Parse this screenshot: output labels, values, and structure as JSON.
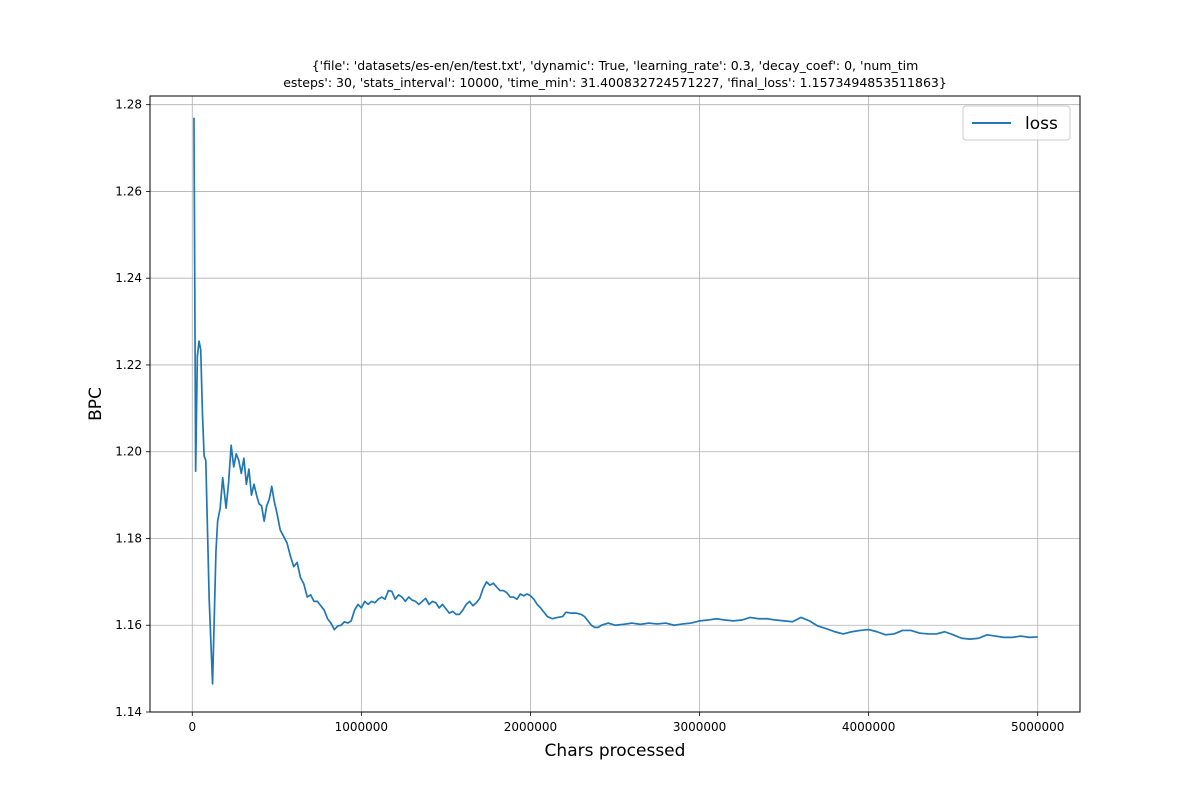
{
  "chart_data": {
    "type": "line",
    "title_lines": [
      "{'file': 'datasets/es-en/en/test.txt', 'dynamic': True, 'learning_rate': 0.3, 'decay_coef': 0, 'num_tim",
      "esteps': 30, 'stats_interval': 10000, 'time_min': 31.400832724571227, 'final_loss': 1.1573494853511863}"
    ],
    "xlabel": "Chars processed",
    "ylabel": "BPC",
    "xlim": [
      -250000,
      5250000
    ],
    "ylim": [
      1.14,
      1.282
    ],
    "xticks": [
      0,
      1000000,
      2000000,
      3000000,
      4000000,
      5000000
    ],
    "xtick_labels": [
      "0",
      "1000000",
      "2000000",
      "3000000",
      "4000000",
      "5000000"
    ],
    "yticks": [
      1.14,
      1.16,
      1.18,
      1.2,
      1.22,
      1.24,
      1.26,
      1.28
    ],
    "ytick_labels": [
      "1.14",
      "1.16",
      "1.18",
      "1.20",
      "1.22",
      "1.24",
      "1.26",
      "1.28"
    ],
    "grid": true,
    "legend_position": "top-right",
    "line_color": "#1f77b4",
    "series": [
      {
        "name": "loss",
        "points": [
          [
            10000,
            1.277
          ],
          [
            20000,
            1.1955
          ],
          [
            30000,
            1.222
          ],
          [
            40000,
            1.2255
          ],
          [
            50000,
            1.2235
          ],
          [
            60000,
            1.209
          ],
          [
            70000,
            1.199
          ],
          [
            80000,
            1.198
          ],
          [
            100000,
            1.166
          ],
          [
            120000,
            1.1465
          ],
          [
            140000,
            1.177
          ],
          [
            150000,
            1.184
          ],
          [
            165000,
            1.187
          ],
          [
            180000,
            1.194
          ],
          [
            200000,
            1.187
          ],
          [
            215000,
            1.193
          ],
          [
            230000,
            1.2015
          ],
          [
            245000,
            1.1965
          ],
          [
            260000,
            1.1995
          ],
          [
            275000,
            1.198
          ],
          [
            290000,
            1.195
          ],
          [
            305000,
            1.1985
          ],
          [
            320000,
            1.1925
          ],
          [
            335000,
            1.196
          ],
          [
            350000,
            1.19
          ],
          [
            365000,
            1.1925
          ],
          [
            380000,
            1.19
          ],
          [
            395000,
            1.188
          ],
          [
            410000,
            1.1875
          ],
          [
            425000,
            1.184
          ],
          [
            440000,
            1.1875
          ],
          [
            455000,
            1.189
          ],
          [
            470000,
            1.192
          ],
          [
            485000,
            1.1885
          ],
          [
            500000,
            1.186
          ],
          [
            520000,
            1.182
          ],
          [
            540000,
            1.1805
          ],
          [
            560000,
            1.179
          ],
          [
            580000,
            1.176
          ],
          [
            600000,
            1.1735
          ],
          [
            620000,
            1.1745
          ],
          [
            640000,
            1.171
          ],
          [
            660000,
            1.1695
          ],
          [
            680000,
            1.1665
          ],
          [
            700000,
            1.167
          ],
          [
            720000,
            1.1655
          ],
          [
            740000,
            1.1655
          ],
          [
            760000,
            1.1645
          ],
          [
            780000,
            1.1635
          ],
          [
            800000,
            1.1615
          ],
          [
            820000,
            1.1605
          ],
          [
            840000,
            1.159
          ],
          [
            860000,
            1.1598
          ],
          [
            880000,
            1.16
          ],
          [
            900000,
            1.1608
          ],
          [
            920000,
            1.1605
          ],
          [
            940000,
            1.161
          ],
          [
            960000,
            1.1635
          ],
          [
            980000,
            1.1648
          ],
          [
            1000000,
            1.164
          ],
          [
            1020000,
            1.1655
          ],
          [
            1040000,
            1.1648
          ],
          [
            1060000,
            1.1655
          ],
          [
            1080000,
            1.1652
          ],
          [
            1100000,
            1.166
          ],
          [
            1120000,
            1.1665
          ],
          [
            1140000,
            1.166
          ],
          [
            1160000,
            1.168
          ],
          [
            1180000,
            1.1678
          ],
          [
            1200000,
            1.166
          ],
          [
            1220000,
            1.167
          ],
          [
            1240000,
            1.1665
          ],
          [
            1260000,
            1.1655
          ],
          [
            1280000,
            1.1665
          ],
          [
            1300000,
            1.1658
          ],
          [
            1320000,
            1.1655
          ],
          [
            1340000,
            1.1648
          ],
          [
            1360000,
            1.1655
          ],
          [
            1380000,
            1.1662
          ],
          [
            1400000,
            1.1648
          ],
          [
            1420000,
            1.1655
          ],
          [
            1440000,
            1.1652
          ],
          [
            1460000,
            1.164
          ],
          [
            1480000,
            1.1648
          ],
          [
            1500000,
            1.1638
          ],
          [
            1520000,
            1.1628
          ],
          [
            1540000,
            1.1632
          ],
          [
            1560000,
            1.1625
          ],
          [
            1580000,
            1.1625
          ],
          [
            1600000,
            1.1635
          ],
          [
            1620000,
            1.1648
          ],
          [
            1640000,
            1.1655
          ],
          [
            1660000,
            1.1645
          ],
          [
            1680000,
            1.1652
          ],
          [
            1700000,
            1.1662
          ],
          [
            1720000,
            1.1685
          ],
          [
            1740000,
            1.17
          ],
          [
            1760000,
            1.1692
          ],
          [
            1780000,
            1.1697
          ],
          [
            1800000,
            1.1688
          ],
          [
            1820000,
            1.168
          ],
          [
            1840000,
            1.168
          ],
          [
            1860000,
            1.1675
          ],
          [
            1880000,
            1.1665
          ],
          [
            1900000,
            1.1665
          ],
          [
            1920000,
            1.166
          ],
          [
            1940000,
            1.1672
          ],
          [
            1960000,
            1.1668
          ],
          [
            1980000,
            1.1672
          ],
          [
            2000000,
            1.1668
          ],
          [
            2020000,
            1.166
          ],
          [
            2040000,
            1.1648
          ],
          [
            2060000,
            1.164
          ],
          [
            2080000,
            1.163
          ],
          [
            2100000,
            1.162
          ],
          [
            2130000,
            1.1615
          ],
          [
            2160000,
            1.1618
          ],
          [
            2190000,
            1.162
          ],
          [
            2210000,
            1.163
          ],
          [
            2240000,
            1.1628
          ],
          [
            2270000,
            1.1628
          ],
          [
            2300000,
            1.1625
          ],
          [
            2320000,
            1.162
          ],
          [
            2340000,
            1.161
          ],
          [
            2360000,
            1.16
          ],
          [
            2380000,
            1.1595
          ],
          [
            2400000,
            1.1595
          ],
          [
            2420000,
            1.16
          ],
          [
            2460000,
            1.1605
          ],
          [
            2500000,
            1.16
          ],
          [
            2550000,
            1.1602
          ],
          [
            2600000,
            1.1605
          ],
          [
            2650000,
            1.1602
          ],
          [
            2700000,
            1.1605
          ],
          [
            2750000,
            1.1603
          ],
          [
            2800000,
            1.1605
          ],
          [
            2850000,
            1.16
          ],
          [
            2900000,
            1.1603
          ],
          [
            2950000,
            1.1605
          ],
          [
            3000000,
            1.161
          ],
          [
            3050000,
            1.1612
          ],
          [
            3100000,
            1.1615
          ],
          [
            3150000,
            1.1612
          ],
          [
            3200000,
            1.161
          ],
          [
            3250000,
            1.1612
          ],
          [
            3300000,
            1.1618
          ],
          [
            3350000,
            1.1615
          ],
          [
            3400000,
            1.1615
          ],
          [
            3450000,
            1.1612
          ],
          [
            3500000,
            1.161
          ],
          [
            3550000,
            1.1608
          ],
          [
            3600000,
            1.1618
          ],
          [
            3650000,
            1.161
          ],
          [
            3700000,
            1.1598
          ],
          [
            3750000,
            1.1592
          ],
          [
            3800000,
            1.1585
          ],
          [
            3850000,
            1.158
          ],
          [
            3900000,
            1.1585
          ],
          [
            3950000,
            1.1588
          ],
          [
            4000000,
            1.159
          ],
          [
            4050000,
            1.1585
          ],
          [
            4100000,
            1.1578
          ],
          [
            4150000,
            1.158
          ],
          [
            4200000,
            1.1588
          ],
          [
            4250000,
            1.1588
          ],
          [
            4300000,
            1.1582
          ],
          [
            4350000,
            1.158
          ],
          [
            4400000,
            1.158
          ],
          [
            4450000,
            1.1585
          ],
          [
            4500000,
            1.1578
          ],
          [
            4550000,
            1.157
          ],
          [
            4600000,
            1.1568
          ],
          [
            4650000,
            1.157
          ],
          [
            4700000,
            1.1578
          ],
          [
            4750000,
            1.1575
          ],
          [
            4800000,
            1.1572
          ],
          [
            4850000,
            1.1572
          ],
          [
            4900000,
            1.1575
          ],
          [
            4950000,
            1.1572
          ],
          [
            5000000,
            1.1573
          ]
        ]
      }
    ]
  }
}
